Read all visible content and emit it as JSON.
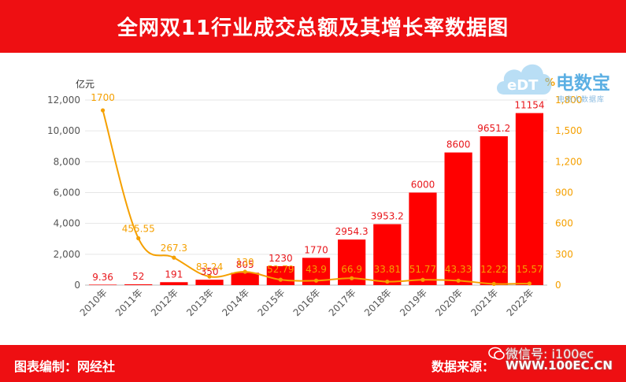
{
  "header": {
    "title": "全网双11行业成交总额及其增长率数据图"
  },
  "footer": {
    "left_text": "图表编制：网经社",
    "right_text": "数据来源："
  },
  "watermark": {
    "brand": "电数宝",
    "sub": "电商大数据库",
    "wechat_id": "微信号: i100ec",
    "url": "WWW.100EC.CN"
  },
  "colors": {
    "bar": "#ff0000",
    "line": "#f5a000",
    "header_bg": "#ee0f12",
    "bar_label": "#e8161b"
  },
  "chart_data": {
    "type": "bar",
    "categories": [
      "2010年",
      "2011年",
      "2012年",
      "2013年",
      "2014年",
      "2015年",
      "2016年",
      "2017年",
      "2018年",
      "2019年",
      "2020年",
      "2021年",
      "2022年"
    ],
    "left_unit": "亿元",
    "right_unit": "%",
    "y_left": {
      "min": 0,
      "max": 12000,
      "ticks": [
        "0",
        "2,000",
        "4,000",
        "6,000",
        "8,000",
        "10,000",
        "12,000"
      ]
    },
    "y_right": {
      "min": 0,
      "max": 1800,
      "ticks": [
        "0",
        "300",
        "600",
        "900",
        "1,200",
        "1,500",
        "1,800"
      ]
    },
    "series": [
      {
        "kind": "bar",
        "values": [
          9.36,
          52,
          191,
          350,
          805,
          1230,
          1770,
          2954.3,
          3953.2,
          6000,
          8600,
          9651.2,
          11154
        ],
        "labels": [
          "9.36",
          "52",
          "191",
          "350",
          "805",
          "1230",
          "1770",
          "2954.3",
          "3953.2",
          "6000",
          "8600",
          "9651.2",
          "11154"
        ]
      },
      {
        "kind": "line",
        "axis": "right",
        "values": [
          1700,
          455.55,
          267.3,
          83.24,
          130,
          52.79,
          43.9,
          66.9,
          33.81,
          51.77,
          43.33,
          12.22,
          15.57
        ],
        "labels": [
          "1700",
          "455.55",
          "267.3",
          "83.24",
          "130",
          "52.79",
          "43.9",
          "66.9",
          "33.81",
          "51.77",
          "43.33",
          "12.22",
          "15.57"
        ]
      }
    ],
    "grid": true,
    "legend": "none"
  }
}
